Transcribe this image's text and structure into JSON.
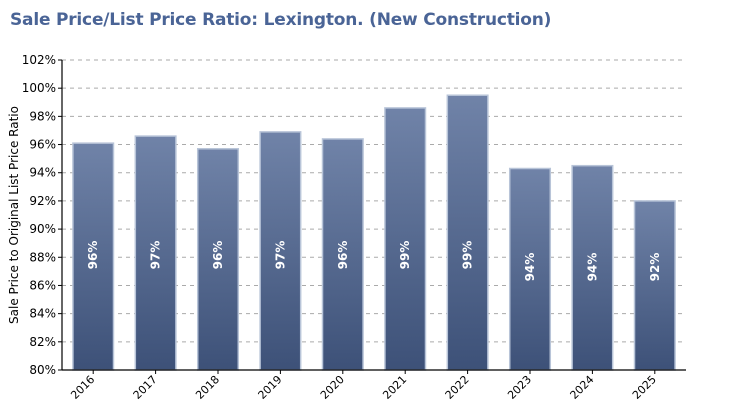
{
  "chart_data": {
    "type": "bar",
    "title": "Sale Price/List Price Ratio: Lexington. (New Construction)",
    "xlabel": "",
    "ylabel": "Sale Price to Original List Price Ratio",
    "categories": [
      "2016",
      "2017",
      "2018",
      "2019",
      "2020",
      "2021",
      "2022",
      "2023",
      "2024",
      "2025"
    ],
    "values": [
      96.1,
      96.6,
      95.7,
      96.9,
      96.4,
      98.6,
      99.5,
      94.3,
      94.5,
      92.0
    ],
    "data_labels": [
      "96%",
      "97%",
      "96%",
      "97%",
      "96%",
      "99%",
      "99%",
      "94%",
      "94%",
      "92%"
    ],
    "ylim": [
      80,
      102
    ],
    "yticks": [
      80,
      82,
      84,
      86,
      88,
      90,
      92,
      94,
      96,
      98,
      100,
      102
    ],
    "ytick_labels": [
      "80%",
      "82%",
      "84%",
      "86%",
      "88%",
      "90%",
      "92%",
      "94%",
      "96%",
      "98%",
      "100%",
      "102%"
    ],
    "grid": true,
    "grid_style": "dashed-horizontal",
    "legend": "none",
    "colors": {
      "title": "#4a6496",
      "bar_top": "#7083a8",
      "bar_bottom": "#3d5178",
      "bar_edge": "#b8c4d8",
      "grid": "#aaaaaa",
      "data_label": "#ffffff"
    }
  }
}
